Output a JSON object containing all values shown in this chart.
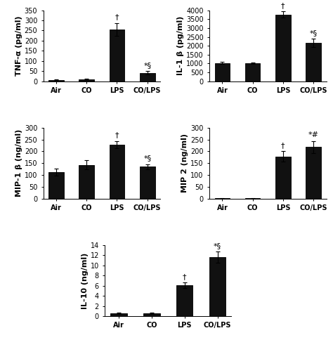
{
  "panels": [
    {
      "ylabel": "TNF-α (pg/ml)",
      "categories": [
        "Air",
        "CO",
        "LPS",
        "CO/LPS"
      ],
      "values": [
        8,
        10,
        255,
        42
      ],
      "errors": [
        3,
        3,
        32,
        8
      ],
      "ylim": [
        0,
        350
      ],
      "yticks": [
        0,
        50,
        100,
        150,
        200,
        250,
        300,
        350
      ],
      "annotations": [
        "",
        "",
        "†",
        "*§"
      ],
      "row": 0,
      "col": 0
    },
    {
      "ylabel": "IL-1 β (pg/ml)",
      "categories": [
        "Air",
        "CO",
        "LPS",
        "CO/LPS"
      ],
      "values": [
        1030,
        1010,
        3750,
        2150
      ],
      "errors": [
        55,
        45,
        175,
        240
      ],
      "ylim": [
        0,
        4000
      ],
      "yticks": [
        0,
        500,
        1000,
        1500,
        2000,
        2500,
        3000,
        3500,
        4000
      ],
      "annotations": [
        "",
        "",
        "†",
        "*§"
      ],
      "row": 0,
      "col": 1
    },
    {
      "ylabel": "MIP-1 β (ng/ml)",
      "categories": [
        "Air",
        "CO",
        "LPS",
        "CO/LPS"
      ],
      "values": [
        113,
        143,
        228,
        135
      ],
      "errors": [
        14,
        20,
        15,
        10
      ],
      "ylim": [
        0,
        300
      ],
      "yticks": [
        0,
        50,
        100,
        150,
        200,
        250,
        300
      ],
      "annotations": [
        "",
        "",
        "†",
        "*§"
      ],
      "row": 1,
      "col": 0
    },
    {
      "ylabel": "MIP 2 (ng/ml)",
      "categories": [
        "Air",
        "CO",
        "LPS",
        "CO/LPS"
      ],
      "values": [
        2,
        2,
        178,
        218
      ],
      "errors": [
        1,
        1,
        22,
        26
      ],
      "ylim": [
        0,
        300
      ],
      "yticks": [
        0,
        50,
        100,
        150,
        200,
        250,
        300
      ],
      "annotations": [
        "",
        "",
        "†",
        "*#"
      ],
      "mip2": true,
      "row": 1,
      "col": 1
    },
    {
      "ylabel": "IL-10 (ng/ml)",
      "categories": [
        "Air",
        "CO",
        "LPS",
        "CO/LPS"
      ],
      "values": [
        0.55,
        0.55,
        6.1,
        11.6
      ],
      "errors": [
        0.18,
        0.12,
        0.5,
        1.1
      ],
      "ylim": [
        0,
        14
      ],
      "yticks": [
        0,
        2,
        4,
        6,
        8,
        10,
        12,
        14
      ],
      "annotations": [
        "",
        "",
        "†",
        "*§"
      ],
      "row": 2,
      "col": 0
    }
  ],
  "bar_color": "#111111",
  "bar_width": 0.5,
  "tick_fontsize": 7,
  "label_fontsize": 8,
  "annot_fontsize": 8,
  "background_color": "#ffffff"
}
